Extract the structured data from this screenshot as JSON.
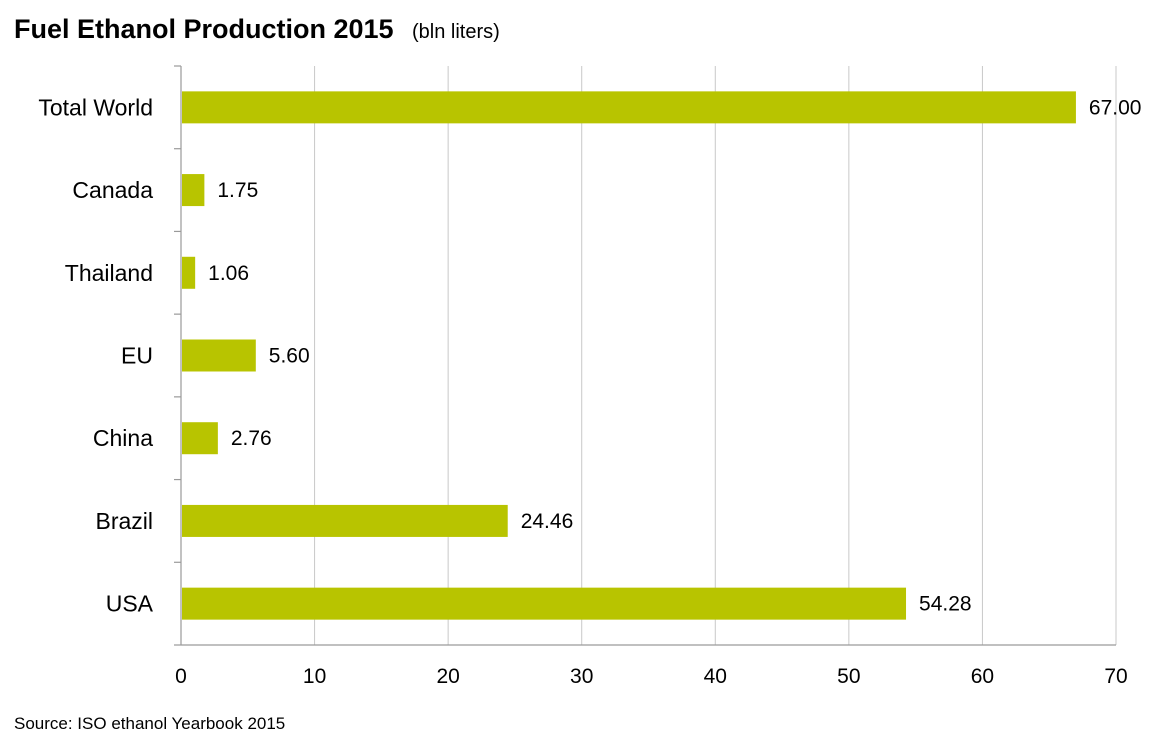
{
  "chart_data": {
    "type": "bar",
    "orientation": "horizontal",
    "title": "Fuel Ethanol Production 2015",
    "subtitle": "(bln liters)",
    "categories": [
      "Total World",
      "Canada",
      "Thailand",
      "EU",
      "China",
      "Brazil",
      "USA"
    ],
    "values": [
      67.0,
      1.75,
      1.06,
      5.6,
      2.76,
      24.46,
      54.28
    ],
    "value_labels": [
      "67.00",
      "1.75",
      "1.06",
      "5.60",
      "2.76",
      "24.46",
      "54.28"
    ],
    "xlim": [
      0,
      70
    ],
    "xticks": [
      "0",
      "10",
      "20",
      "30",
      "40",
      "50",
      "60",
      "70"
    ],
    "grid": true,
    "legend": "none",
    "bar_color": "#b8c400",
    "grid_color": "#c8c8c8"
  },
  "source": "Source: ISO ethanol Yearbook 2015"
}
